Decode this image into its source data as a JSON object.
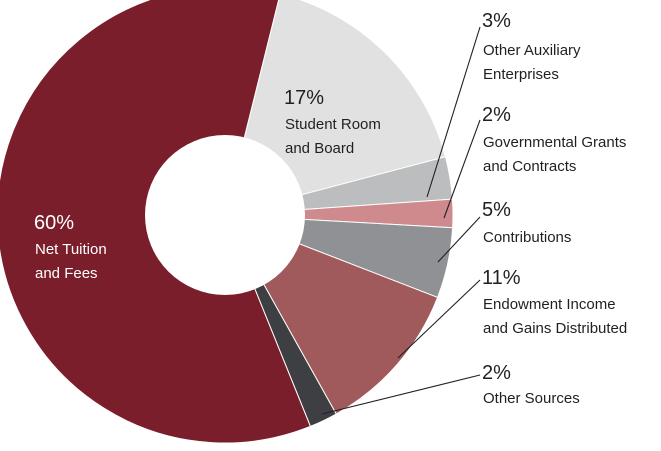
{
  "chart_data": {
    "type": "pie",
    "variant": "donut",
    "slices": [
      {
        "label": "Student Room and Board",
        "pct_label": "17%",
        "value": 17,
        "color": "#e1e1e2"
      },
      {
        "label": "Other Auxiliary Enterprises",
        "pct_label": "3%",
        "value": 3,
        "color": "#bcbdbf"
      },
      {
        "label": "Governmental Grants and Contracts",
        "pct_label": "2%",
        "value": 2,
        "color": "#cf8a8d"
      },
      {
        "label": "Contributions",
        "pct_label": "5%",
        "value": 5,
        "color": "#8f9194"
      },
      {
        "label": "Endowment Income and Gains Distributed",
        "pct_label": "11%",
        "value": 11,
        "color": "#a15a5b"
      },
      {
        "label": "Other Sources",
        "pct_label": "2%",
        "value": 2,
        "color": "#3e3f42"
      },
      {
        "label": "Net Tuition and Fees",
        "pct_label": "60%",
        "value": 60,
        "color": "#7a1e2b"
      }
    ],
    "labels": {
      "net_tuition": {
        "pct": "60%",
        "line1": "Net Tuition",
        "line2": "and Fees"
      },
      "room_board": {
        "pct": "17%",
        "line1": "Student Room",
        "line2": "and Board"
      },
      "other_aux": {
        "pct": "3%",
        "line1": "Other Auxiliary",
        "line2": "Enterprises"
      },
      "gov_grants": {
        "pct": "2%",
        "line1": "Governmental Grants",
        "line2": "and Contracts"
      },
      "contributions": {
        "pct": "5%",
        "line1": "Contributions"
      },
      "endowment": {
        "pct": "11%",
        "line1": "Endowment Income",
        "line2": "and Gains Distributed"
      },
      "other_sources": {
        "pct": "2%",
        "line1": "Other Sources"
      }
    }
  }
}
